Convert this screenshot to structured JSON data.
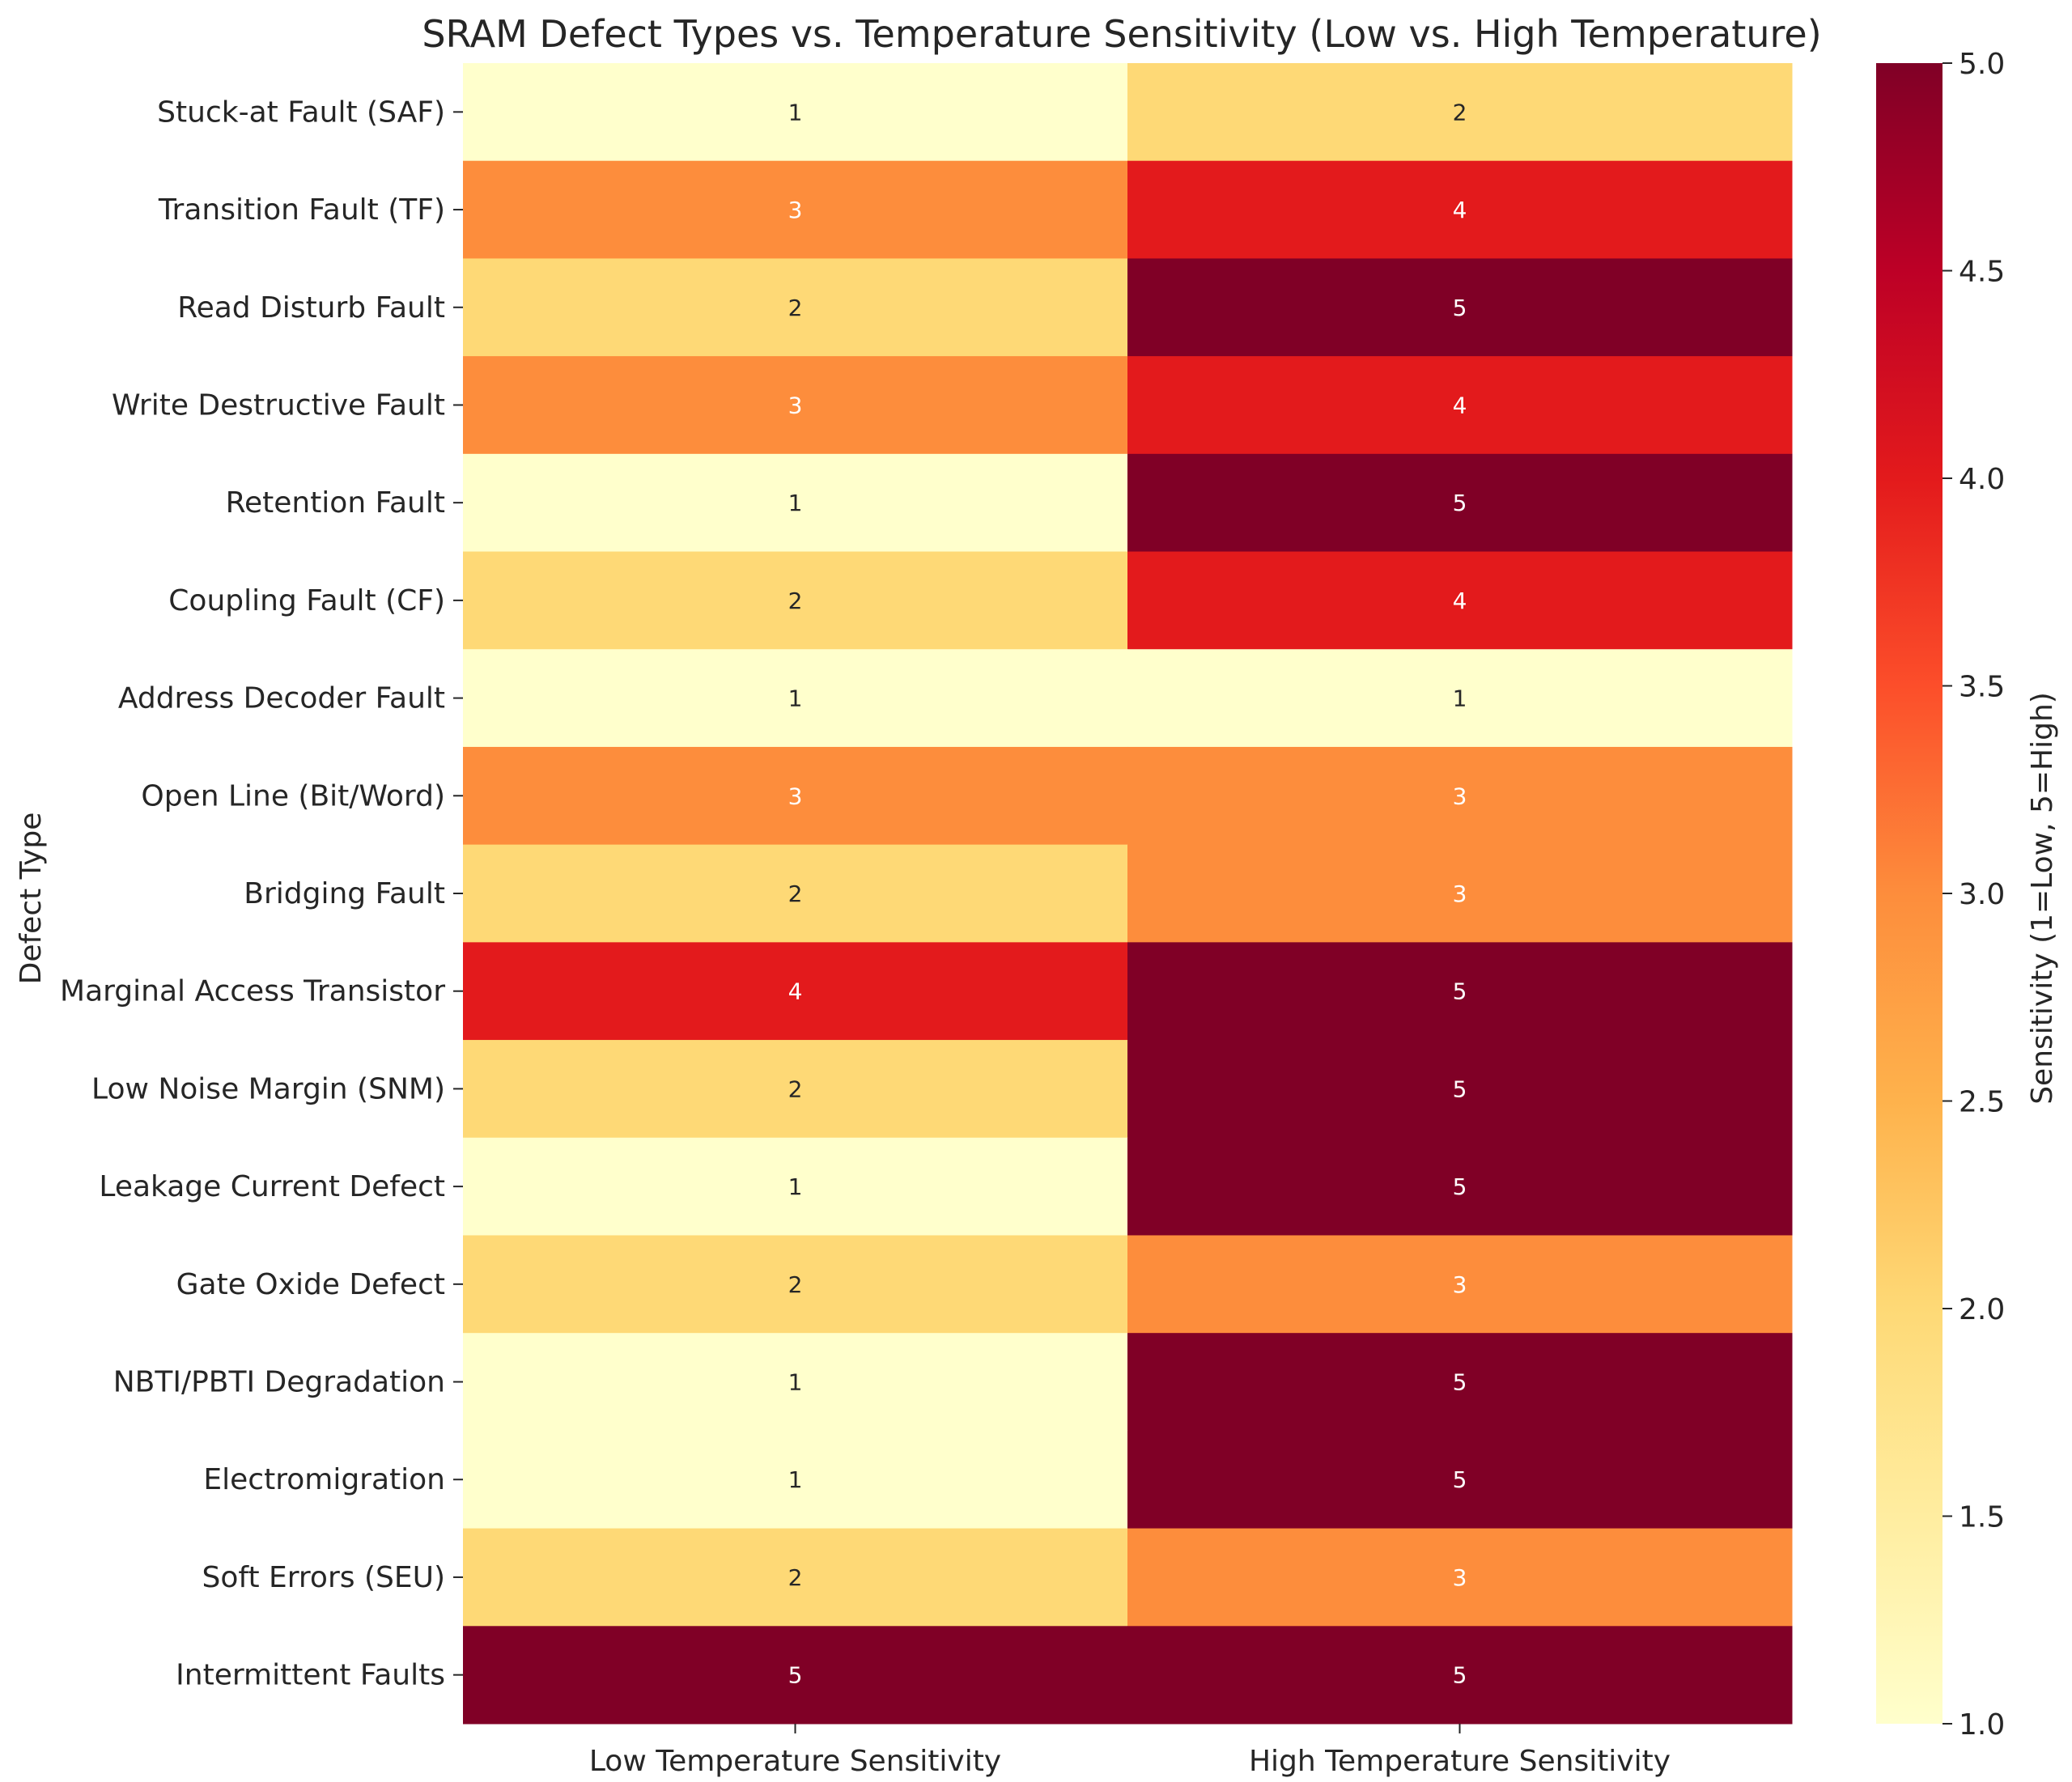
{
  "chart_data": {
    "type": "heatmap",
    "title": "SRAM Defect Types vs. Temperature Sensitivity (Low vs. High Temperature)",
    "ylabel": "Defect Type",
    "xlabel": "",
    "columns": [
      "Low Temperature Sensitivity",
      "High Temperature Sensitivity"
    ],
    "rows": [
      "Stuck-at Fault (SAF)",
      "Transition Fault (TF)",
      "Read Disturb Fault",
      "Write Destructive Fault",
      "Retention Fault",
      "Coupling Fault (CF)",
      "Address Decoder Fault",
      "Open Line (Bit/Word)",
      "Bridging Fault",
      "Marginal Access Transistor",
      "Low Noise Margin (SNM)",
      "Leakage Current Defect",
      "Gate Oxide Defect",
      "NBTI/PBTI Degradation",
      "Electromigration",
      "Soft Errors (SEU)",
      "Intermittent Faults"
    ],
    "values": [
      [
        1,
        2
      ],
      [
        3,
        4
      ],
      [
        2,
        5
      ],
      [
        3,
        4
      ],
      [
        1,
        5
      ],
      [
        2,
        4
      ],
      [
        1,
        1
      ],
      [
        3,
        3
      ],
      [
        2,
        3
      ],
      [
        4,
        5
      ],
      [
        2,
        5
      ],
      [
        1,
        5
      ],
      [
        2,
        3
      ],
      [
        1,
        5
      ],
      [
        1,
        5
      ],
      [
        2,
        3
      ],
      [
        5,
        5
      ]
    ],
    "colorbar": {
      "label": "Sensitivity (1=Low, 5=High)",
      "range": [
        1.0,
        5.0
      ],
      "ticks": [
        "1.0",
        "1.5",
        "2.0",
        "2.5",
        "3.0",
        "3.5",
        "4.0",
        "4.5",
        "5.0"
      ],
      "colormap": "YlOrRd",
      "stops": [
        "#ffffcc",
        "#ffeda0",
        "#fed976",
        "#feb24c",
        "#fd8d3c",
        "#fc4e2a",
        "#e31a1c",
        "#bd0026",
        "#800026"
      ]
    },
    "annotate": true
  }
}
